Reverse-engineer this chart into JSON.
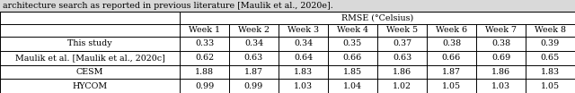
{
  "caption": "architecture search as reported in previous literature [Maulik et al., 2020e].",
  "header_main": "RMSE (°Celsius)",
  "col_headers": [
    "Week 1",
    "Week 2",
    "Week 3",
    "Week 4",
    "Week 5",
    "Week 6",
    "Week 7",
    "Week 8"
  ],
  "rows": [
    {
      "label": "This study",
      "values": [
        "0.33",
        "0.34",
        "0.34",
        "0.35",
        "0.37",
        "0.38",
        "0.38",
        "0.39"
      ]
    },
    {
      "label": "Maulik et al. [Maulik et al., 2020c]",
      "values": [
        "0.62",
        "0.63",
        "0.64",
        "0.66",
        "0.63",
        "0.66",
        "0.69",
        "0.65"
      ]
    },
    {
      "label": "CESM",
      "values": [
        "1.88",
        "1.87",
        "1.83",
        "1.85",
        "1.86",
        "1.87",
        "1.86",
        "1.83"
      ]
    },
    {
      "label": "HYCOM",
      "values": [
        "0.99",
        "0.99",
        "1.03",
        "1.04",
        "1.02",
        "1.05",
        "1.03",
        "1.05"
      ]
    }
  ],
  "bg_color": "#d9d9d9",
  "table_bg": "#ffffff",
  "font_size": 6.8,
  "caption_font_size": 6.8,
  "fig_width": 6.4,
  "fig_height": 1.04,
  "dpi": 100
}
